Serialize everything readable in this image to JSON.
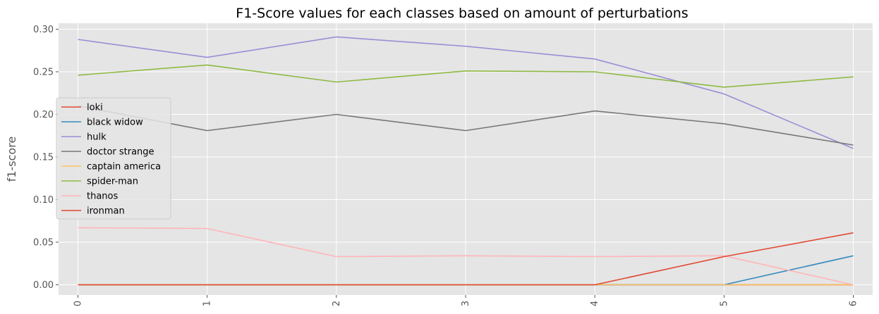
{
  "chart_data": {
    "type": "line",
    "title": "F1-Score values for each classes based on amount of perturbations",
    "xlabel": "",
    "ylabel": "f1-score",
    "x": [
      0,
      1,
      2,
      3,
      4,
      5,
      6
    ],
    "x_tick_labels": [
      "0",
      "1",
      "2",
      "3",
      "4",
      "5",
      "6"
    ],
    "y_ticks": [
      0.0,
      0.05,
      0.1,
      0.15,
      0.2,
      0.25,
      0.3
    ],
    "y_tick_labels": [
      "0.00",
      "0.05",
      "0.10",
      "0.15",
      "0.20",
      "0.25",
      "0.30"
    ],
    "xlim": [
      -0.15,
      6.15
    ],
    "ylim": [
      -0.012,
      0.307
    ],
    "grid": true,
    "legend_position": "center-left",
    "series": [
      {
        "name": "loki",
        "color": "#E24A33",
        "values": [
          0.0,
          0.0,
          0.0,
          0.0,
          0.0,
          0.0,
          0.0
        ]
      },
      {
        "name": "black widow",
        "color": "#348ABD",
        "values": [
          0.0,
          0.0,
          0.0,
          0.0,
          0.0,
          0.0,
          0.034
        ]
      },
      {
        "name": "hulk",
        "color": "#988ED5",
        "values": [
          0.288,
          0.267,
          0.291,
          0.28,
          0.265,
          0.224,
          0.16
        ]
      },
      {
        "name": "doctor strange",
        "color": "#777777",
        "values": [
          0.21,
          0.181,
          0.2,
          0.181,
          0.204,
          0.189,
          0.164
        ]
      },
      {
        "name": "captain america",
        "color": "#FBC15E",
        "values": [
          0.0,
          0.0,
          0.0,
          0.0,
          0.0,
          0.0,
          0.0
        ]
      },
      {
        "name": "spider-man",
        "color": "#8EBA42",
        "values": [
          0.246,
          0.258,
          0.238,
          0.251,
          0.25,
          0.232,
          0.244
        ]
      },
      {
        "name": "thanos",
        "color": "#FFB5B8",
        "values": [
          0.067,
          0.066,
          0.033,
          0.034,
          0.033,
          0.034,
          0.0
        ]
      },
      {
        "name": "ironman",
        "color": "#E24A33",
        "values": [
          0.0,
          0.0,
          0.0,
          0.0,
          0.0,
          0.033,
          0.061
        ]
      }
    ]
  }
}
